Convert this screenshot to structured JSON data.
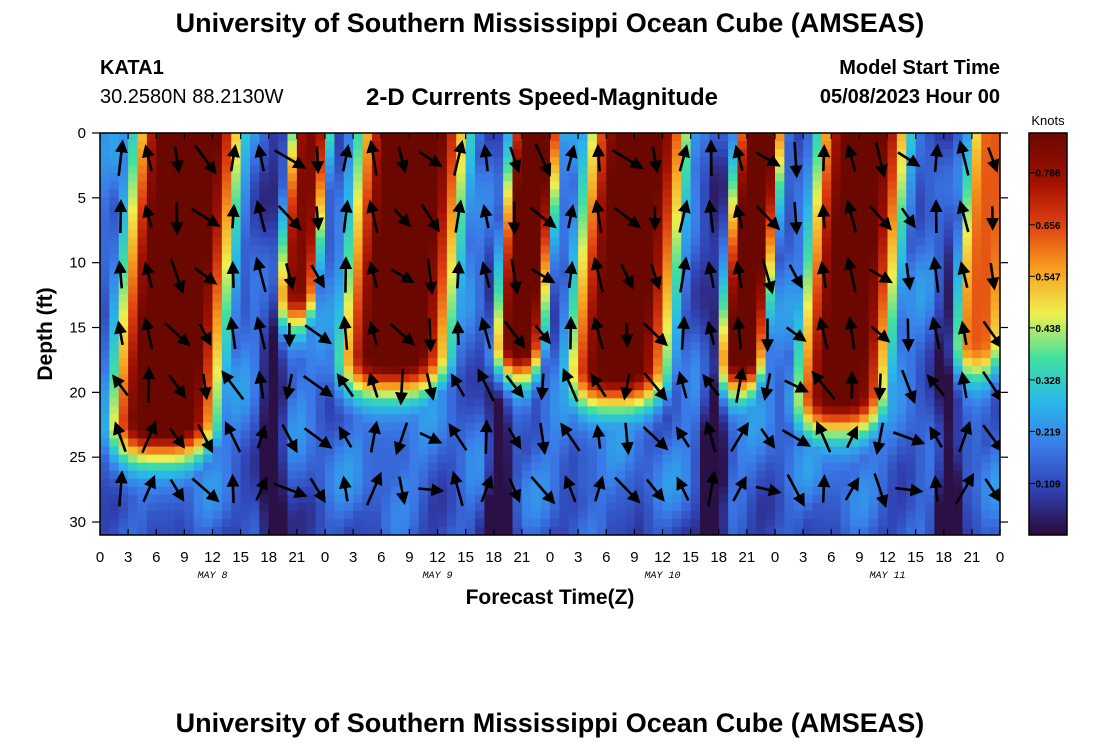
{
  "page": {
    "title_top": "University of Southern Mississippi Ocean Cube (AMSEAS)",
    "title_bottom": "University of Southern Mississippi Ocean Cube (AMSEAS)",
    "station_id": "KATA1",
    "coordinates": "30.2580N  88.2130W",
    "subtitle": "2-D Currents Speed-Magnitude",
    "model_start_label": "Model Start Time",
    "model_start_value": "05/08/2023 Hour 00"
  },
  "chart_data": {
    "type": "heatmap",
    "xlabel": "Forecast Time(Z)",
    "ylabel": "Depth (ft)",
    "x_range_hours": [
      0,
      96
    ],
    "y_range_ft": [
      0,
      31
    ],
    "x_tick_labels": [
      "0",
      "3",
      "6",
      "9",
      "12",
      "15",
      "18",
      "21",
      "0",
      "3",
      "6",
      "9",
      "12",
      "15",
      "18",
      "21",
      "0",
      "3",
      "6",
      "9",
      "12",
      "15",
      "18",
      "21",
      "0",
      "3",
      "6",
      "9",
      "12",
      "15",
      "18",
      "21",
      "0"
    ],
    "y_ticks": [
      0,
      5,
      10,
      15,
      20,
      25,
      30
    ],
    "day_labels": [
      {
        "label": "MAY 8",
        "hour": 12
      },
      {
        "label": "MAY 9",
        "hour": 36
      },
      {
        "label": "MAY 10",
        "hour": 60
      },
      {
        "label": "MAY 11",
        "hour": 84
      }
    ],
    "colorbar": {
      "title": "Knots",
      "min": 0,
      "max": 0.85,
      "tick_labels": [
        "0.766",
        "0.656",
        "0.547",
        "0.438",
        "0.328",
        "0.219",
        "0.109"
      ],
      "tick_values": [
        0.766,
        0.656,
        0.547,
        0.438,
        0.328,
        0.219,
        0.109
      ],
      "colors": [
        "#2a0a3a",
        "#3040b0",
        "#3a7ae8",
        "#2ab8e8",
        "#40e0a0",
        "#f0f050",
        "#f8a020",
        "#e04010",
        "#a01000",
        "#6a0800"
      ]
    },
    "speed_bands_estimated": [
      {
        "period": "May 8 02-15Z",
        "depth_ft": [
          0,
          22
        ],
        "speed_kn": 0.75
      },
      {
        "period": "May 8 20-23Z",
        "depth_ft": [
          0,
          12
        ],
        "speed_kn": 0.65
      },
      {
        "period": "May 9 02-15Z",
        "depth_ft": [
          0,
          17
        ],
        "speed_kn": 0.72
      },
      {
        "period": "May 9 19-24Z",
        "depth_ft": [
          0,
          16
        ],
        "speed_kn": 0.75
      },
      {
        "period": "May 10 03-14Z",
        "depth_ft": [
          0,
          18
        ],
        "speed_kn": 0.72
      },
      {
        "period": "May 10 20-25Z",
        "depth_ft": [
          0,
          17
        ],
        "speed_kn": 0.72
      },
      {
        "period": "May 11 04-14Z",
        "depth_ft": [
          0,
          20
        ],
        "speed_kn": 0.7
      },
      {
        "period": "May 11 20-24Z",
        "depth_ft": [
          5,
          18
        ],
        "speed_kn": 0.45
      }
    ]
  }
}
